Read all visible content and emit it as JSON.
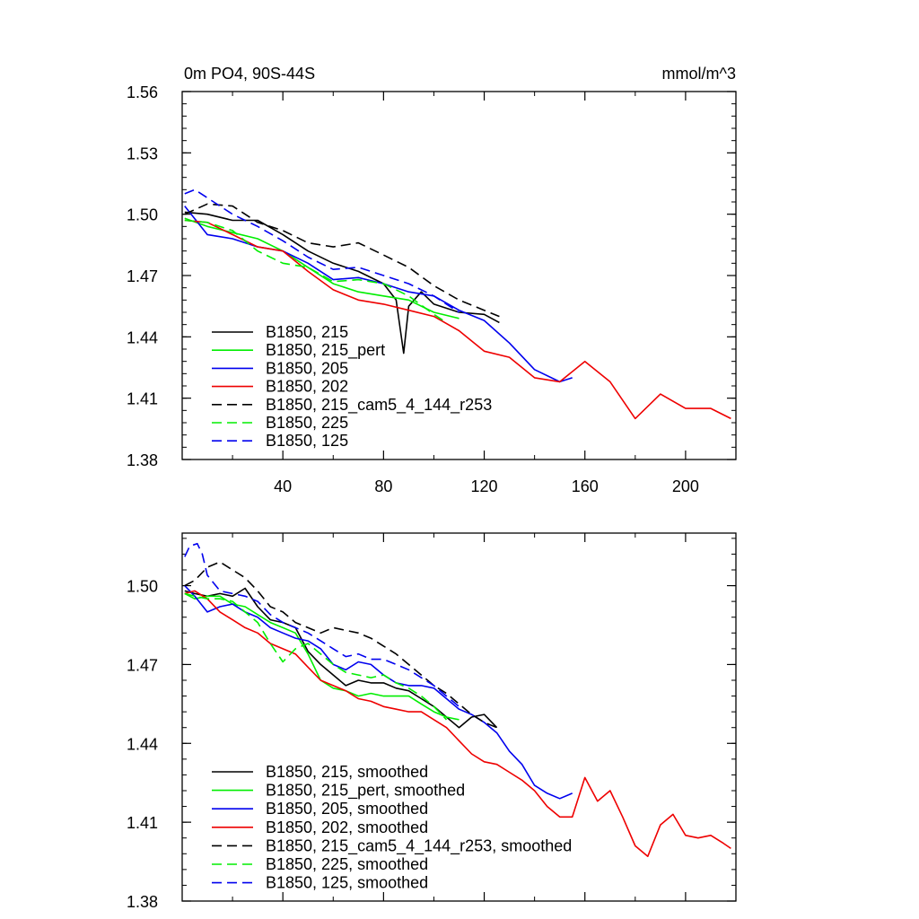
{
  "chart_data": [
    {
      "type": "line",
      "title": "0m PO4, 90S-44S",
      "units": "mmol/m^3",
      "xlabel": "",
      "ylabel": "",
      "xlim": [
        0,
        220
      ],
      "ylim": [
        1.38,
        1.56
      ],
      "xticks": [
        "40",
        "80",
        "120",
        "160",
        "200"
      ],
      "yticks": [
        "1.38",
        "1.41",
        "1.44",
        "1.47",
        "1.50",
        "1.53",
        "1.56"
      ],
      "grid": false,
      "legend_position": "bottom-left",
      "series": [
        {
          "name": "B1850, 215",
          "color": "#000000",
          "dash": "solid",
          "x": [
            1,
            10,
            20,
            30,
            40,
            50,
            60,
            70,
            80,
            85,
            88,
            90,
            95,
            100,
            110,
            120,
            126
          ],
          "y": [
            1.501,
            1.5,
            1.497,
            1.497,
            1.49,
            1.482,
            1.476,
            1.472,
            1.466,
            1.458,
            1.432,
            1.455,
            1.462,
            1.456,
            1.452,
            1.451,
            1.447
          ]
        },
        {
          "name": "B1850, 215_pert",
          "color": "#00ee00",
          "dash": "solid",
          "x": [
            1,
            10,
            20,
            30,
            40,
            50,
            60,
            70,
            80,
            90,
            100,
            110
          ],
          "y": [
            1.498,
            1.494,
            1.491,
            1.488,
            1.482,
            1.474,
            1.466,
            1.462,
            1.46,
            1.458,
            1.452,
            1.449
          ]
        },
        {
          "name": "B1850, 205",
          "color": "#0000ee",
          "dash": "solid",
          "x": [
            1,
            10,
            20,
            30,
            40,
            50,
            60,
            70,
            80,
            90,
            100,
            110,
            120,
            130,
            140,
            150,
            155
          ],
          "y": [
            1.504,
            1.49,
            1.488,
            1.484,
            1.482,
            1.476,
            1.468,
            1.469,
            1.466,
            1.462,
            1.46,
            1.453,
            1.448,
            1.437,
            1.424,
            1.418,
            1.42
          ]
        },
        {
          "name": "B1850, 202",
          "color": "#ee0000",
          "dash": "solid",
          "x": [
            1,
            10,
            20,
            30,
            40,
            50,
            60,
            70,
            80,
            90,
            100,
            110,
            120,
            130,
            140,
            150,
            160,
            170,
            180,
            190,
            200,
            210,
            218
          ],
          "y": [
            1.497,
            1.496,
            1.49,
            1.484,
            1.482,
            1.472,
            1.463,
            1.458,
            1.456,
            1.453,
            1.45,
            1.443,
            1.433,
            1.43,
            1.42,
            1.418,
            1.428,
            1.418,
            1.4,
            1.412,
            1.405,
            1.405,
            1.4
          ]
        },
        {
          "name": "B1850, 215_cam5_4_144_r253",
          "color": "#000000",
          "dash": "dashed",
          "x": [
            1,
            10,
            20,
            30,
            40,
            50,
            60,
            70,
            80,
            90,
            100,
            110,
            120,
            126
          ],
          "y": [
            1.5,
            1.505,
            1.504,
            1.496,
            1.492,
            1.486,
            1.484,
            1.486,
            1.48,
            1.474,
            1.465,
            1.458,
            1.453,
            1.45
          ]
        },
        {
          "name": "B1850, 225",
          "color": "#00ee00",
          "dash": "dashed",
          "x": [
            1,
            10,
            20,
            30,
            40,
            50,
            60,
            70,
            80,
            90,
            100,
            105
          ],
          "y": [
            1.497,
            1.496,
            1.492,
            1.482,
            1.476,
            1.474,
            1.467,
            1.468,
            1.466,
            1.46,
            1.451,
            1.447
          ]
        },
        {
          "name": "B1850, 125",
          "color": "#0000ee",
          "dash": "dashed",
          "x": [
            1,
            5,
            10,
            20,
            30,
            40,
            50,
            60,
            70,
            80,
            90,
            100,
            110
          ],
          "y": [
            1.51,
            1.512,
            1.508,
            1.5,
            1.494,
            1.487,
            1.479,
            1.473,
            1.474,
            1.47,
            1.466,
            1.46,
            1.452
          ]
        }
      ]
    },
    {
      "type": "line",
      "title": "",
      "xlabel": "",
      "ylabel": "",
      "xlim": [
        0,
        220
      ],
      "ylim": [
        1.38,
        1.52
      ],
      "yticks": [
        "1.38",
        "1.41",
        "1.44",
        "1.47",
        "1.50"
      ],
      "grid": false,
      "legend_position": "bottom-left",
      "series": [
        {
          "name": "B1850, 215, smoothed",
          "color": "#000000",
          "dash": "solid",
          "x": [
            1,
            5,
            10,
            15,
            20,
            25,
            30,
            35,
            40,
            45,
            50,
            55,
            60,
            65,
            70,
            75,
            80,
            85,
            90,
            95,
            100,
            105,
            110,
            115,
            120,
            125
          ],
          "y": [
            1.498,
            1.497,
            1.496,
            1.497,
            1.496,
            1.499,
            1.492,
            1.487,
            1.486,
            1.484,
            1.475,
            1.47,
            1.466,
            1.462,
            1.464,
            1.463,
            1.463,
            1.461,
            1.46,
            1.457,
            1.454,
            1.45,
            1.446,
            1.45,
            1.451,
            1.446
          ]
        },
        {
          "name": "B1850, 215_pert, smoothed",
          "color": "#00ee00",
          "dash": "solid",
          "x": [
            1,
            5,
            10,
            15,
            20,
            25,
            30,
            35,
            40,
            45,
            50,
            55,
            60,
            65,
            70,
            75,
            80,
            85,
            90,
            95,
            100,
            105,
            110
          ],
          "y": [
            1.497,
            1.495,
            1.496,
            1.496,
            1.493,
            1.492,
            1.489,
            1.486,
            1.484,
            1.482,
            1.474,
            1.464,
            1.461,
            1.46,
            1.458,
            1.459,
            1.458,
            1.458,
            1.458,
            1.455,
            1.452,
            1.45,
            1.449
          ]
        },
        {
          "name": "B1850, 205, smoothed",
          "color": "#0000ee",
          "dash": "solid",
          "x": [
            1,
            5,
            10,
            15,
            20,
            25,
            30,
            35,
            40,
            45,
            50,
            55,
            60,
            65,
            70,
            75,
            80,
            85,
            90,
            95,
            100,
            105,
            110,
            115,
            120,
            125,
            130,
            135,
            140,
            145,
            150,
            155
          ],
          "y": [
            1.5,
            1.496,
            1.49,
            1.492,
            1.493,
            1.49,
            1.488,
            1.484,
            1.482,
            1.48,
            1.479,
            1.476,
            1.47,
            1.468,
            1.471,
            1.47,
            1.466,
            1.463,
            1.462,
            1.462,
            1.461,
            1.457,
            1.453,
            1.451,
            1.448,
            1.444,
            1.437,
            1.432,
            1.424,
            1.421,
            1.419,
            1.421
          ]
        },
        {
          "name": "B1850, 202, smoothed",
          "color": "#ee0000",
          "dash": "solid",
          "x": [
            1,
            5,
            10,
            15,
            20,
            25,
            30,
            35,
            40,
            45,
            50,
            55,
            60,
            65,
            70,
            75,
            80,
            85,
            90,
            95,
            100,
            105,
            110,
            115,
            120,
            125,
            130,
            135,
            140,
            145,
            150,
            155,
            160,
            165,
            170,
            175,
            180,
            185,
            190,
            195,
            200,
            205,
            210,
            215,
            218
          ],
          "y": [
            1.497,
            1.498,
            1.495,
            1.49,
            1.487,
            1.484,
            1.482,
            1.478,
            1.476,
            1.474,
            1.469,
            1.464,
            1.462,
            1.46,
            1.457,
            1.456,
            1.454,
            1.453,
            1.452,
            1.452,
            1.449,
            1.446,
            1.441,
            1.436,
            1.433,
            1.432,
            1.429,
            1.426,
            1.422,
            1.416,
            1.412,
            1.412,
            1.427,
            1.418,
            1.422,
            1.412,
            1.401,
            1.397,
            1.409,
            1.413,
            1.405,
            1.404,
            1.405,
            1.402,
            1.4
          ]
        },
        {
          "name": "B1850, 215_cam5_4_144_r253, smoothed",
          "color": "#000000",
          "dash": "dashed",
          "x": [
            1,
            5,
            10,
            15,
            20,
            25,
            30,
            35,
            40,
            45,
            50,
            55,
            60,
            65,
            70,
            75,
            80,
            85,
            90,
            95,
            100,
            105,
            110,
            115,
            120,
            125
          ],
          "y": [
            1.5,
            1.502,
            1.507,
            1.509,
            1.506,
            1.503,
            1.498,
            1.492,
            1.49,
            1.486,
            1.484,
            1.482,
            1.484,
            1.483,
            1.482,
            1.48,
            1.477,
            1.474,
            1.47,
            1.466,
            1.462,
            1.459,
            1.455,
            1.451,
            1.448,
            1.446
          ]
        },
        {
          "name": "B1850, 225, smoothed",
          "color": "#00ee00",
          "dash": "dashed",
          "x": [
            1,
            5,
            10,
            15,
            20,
            25,
            30,
            35,
            40,
            45,
            50,
            55,
            60,
            65,
            70,
            75,
            80,
            85,
            90,
            95,
            100,
            105
          ],
          "y": [
            1.497,
            1.496,
            1.495,
            1.495,
            1.494,
            1.49,
            1.486,
            1.478,
            1.471,
            1.476,
            1.478,
            1.474,
            1.47,
            1.467,
            1.466,
            1.465,
            1.466,
            1.463,
            1.461,
            1.458,
            1.454,
            1.449
          ]
        },
        {
          "name": "B1850, 125, smoothed",
          "color": "#0000ee",
          "dash": "dashed",
          "x": [
            1,
            3,
            6,
            8,
            10,
            15,
            20,
            25,
            30,
            35,
            40,
            45,
            50,
            55,
            60,
            65,
            70,
            75,
            80,
            85,
            90,
            95,
            100,
            105,
            110
          ],
          "y": [
            1.511,
            1.515,
            1.516,
            1.512,
            1.504,
            1.498,
            1.497,
            1.496,
            1.494,
            1.489,
            1.486,
            1.484,
            1.482,
            1.479,
            1.476,
            1.473,
            1.474,
            1.472,
            1.472,
            1.47,
            1.468,
            1.465,
            1.462,
            1.458,
            1.454
          ]
        }
      ]
    }
  ]
}
